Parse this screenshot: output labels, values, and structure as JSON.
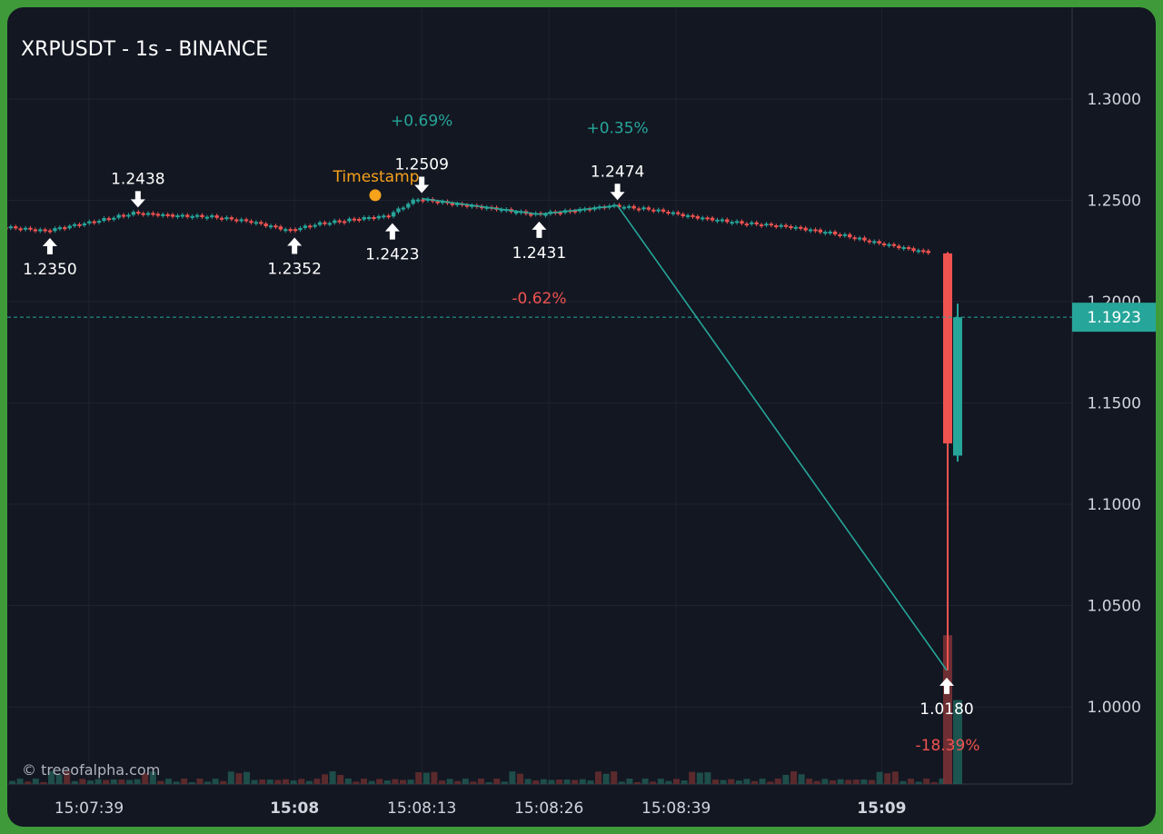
{
  "title": "XRPUSDT - 1s - BINANCE",
  "watermark": "© treeofalpha.com",
  "colors": {
    "background": "#131722",
    "up": "#26a69a",
    "down": "#ef5350",
    "axis_text": "#d1d4dc",
    "marker": "#ffffff",
    "timestamp_marker": "#f7a21b",
    "grid": "#1f2330"
  },
  "chart_data": {
    "type": "candlestick",
    "title": "XRPUSDT - 1s - BINANCE",
    "y_axis": {
      "position": "right",
      "ticks": [
        "1.3000",
        "1.2500",
        "1.2000",
        "1.1500",
        "1.1000",
        "1.0500",
        "1.0000"
      ],
      "range": [
        0.9625,
        1.3305
      ]
    },
    "x_axis": {
      "ticks": [
        {
          "label": "15:07:39",
          "bold": false
        },
        {
          "label": "15:08",
          "bold": true
        },
        {
          "label": "15:08:13",
          "bold": false
        },
        {
          "label": "15:08:26",
          "bold": false
        },
        {
          "label": "15:08:39",
          "bold": false
        },
        {
          "label": "15:09",
          "bold": true
        }
      ]
    },
    "grid": true,
    "current_price": {
      "value": 1.1923,
      "label": "1.1923"
    },
    "price_series": [
      {
        "t": "15:07:30",
        "v": 1.2372
      },
      {
        "t": "15:07:35",
        "v": 1.235
      },
      {
        "t": "15:07:40",
        "v": 1.2395
      },
      {
        "t": "15:07:44",
        "v": 1.2438
      },
      {
        "t": "15:07:48",
        "v": 1.2425
      },
      {
        "t": "15:07:52",
        "v": 1.242
      },
      {
        "t": "15:07:56",
        "v": 1.2395
      },
      {
        "t": "15:08:00",
        "v": 1.2352
      },
      {
        "t": "15:08:03",
        "v": 1.2385
      },
      {
        "t": "15:08:07",
        "v": 1.241
      },
      {
        "t": "15:08:10",
        "v": 1.2423
      },
      {
        "t": "15:08:13",
        "v": 1.2509
      },
      {
        "t": "15:08:17",
        "v": 1.248
      },
      {
        "t": "15:08:21",
        "v": 1.246
      },
      {
        "t": "15:08:25",
        "v": 1.2431
      },
      {
        "t": "15:08:29",
        "v": 1.245
      },
      {
        "t": "15:08:33",
        "v": 1.2474
      },
      {
        "t": "15:08:37",
        "v": 1.2455
      },
      {
        "t": "15:08:41",
        "v": 1.242
      },
      {
        "t": "15:08:46",
        "v": 1.239
      },
      {
        "t": "15:08:51",
        "v": 1.237
      },
      {
        "t": "15:08:56",
        "v": 1.2335
      },
      {
        "t": "15:09:00",
        "v": 1.229
      },
      {
        "t": "15:09:05",
        "v": 1.2245
      }
    ],
    "spike_candles": [
      {
        "direction": "down",
        "open": 1.2238,
        "close": 1.13,
        "high": 1.2245,
        "low": 1.018
      },
      {
        "direction": "up",
        "open": 1.124,
        "close": 1.1923,
        "high": 1.199,
        "low": 1.121
      }
    ],
    "volume_bars": [
      {
        "direction": "down",
        "value": 0.78
      },
      {
        "direction": "up",
        "value": 0.44
      }
    ],
    "swing_points": [
      {
        "kind": "low",
        "label": "1.2350",
        "value": 1.235,
        "t": "15:07:35"
      },
      {
        "kind": "high",
        "label": "1.2438",
        "value": 1.2438,
        "t": "15:07:44"
      },
      {
        "kind": "low",
        "label": "1.2352",
        "value": 1.2352,
        "t": "15:08:00"
      },
      {
        "kind": "low",
        "label": "1.2423",
        "value": 1.2423,
        "t": "15:08:10"
      },
      {
        "kind": "high",
        "label": "1.2509",
        "value": 1.2509,
        "t": "15:08:13"
      },
      {
        "kind": "low",
        "label": "1.2431",
        "value": 1.2431,
        "t": "15:08:25"
      },
      {
        "kind": "high",
        "label": "1.2474",
        "value": 1.2474,
        "t": "15:08:33"
      },
      {
        "kind": "low",
        "label": "1.0180",
        "value": 1.018,
        "t": "15:09:10"
      }
    ],
    "swing_legs": [
      {
        "label": "+0.69%",
        "direction": "up"
      },
      {
        "label": "-0.62%",
        "direction": "down"
      },
      {
        "label": "+0.35%",
        "direction": "up"
      },
      {
        "label": "-18.39%",
        "direction": "down"
      }
    ],
    "timestamp_marker": {
      "label": "Timestamp",
      "value": 1.2525
    }
  }
}
